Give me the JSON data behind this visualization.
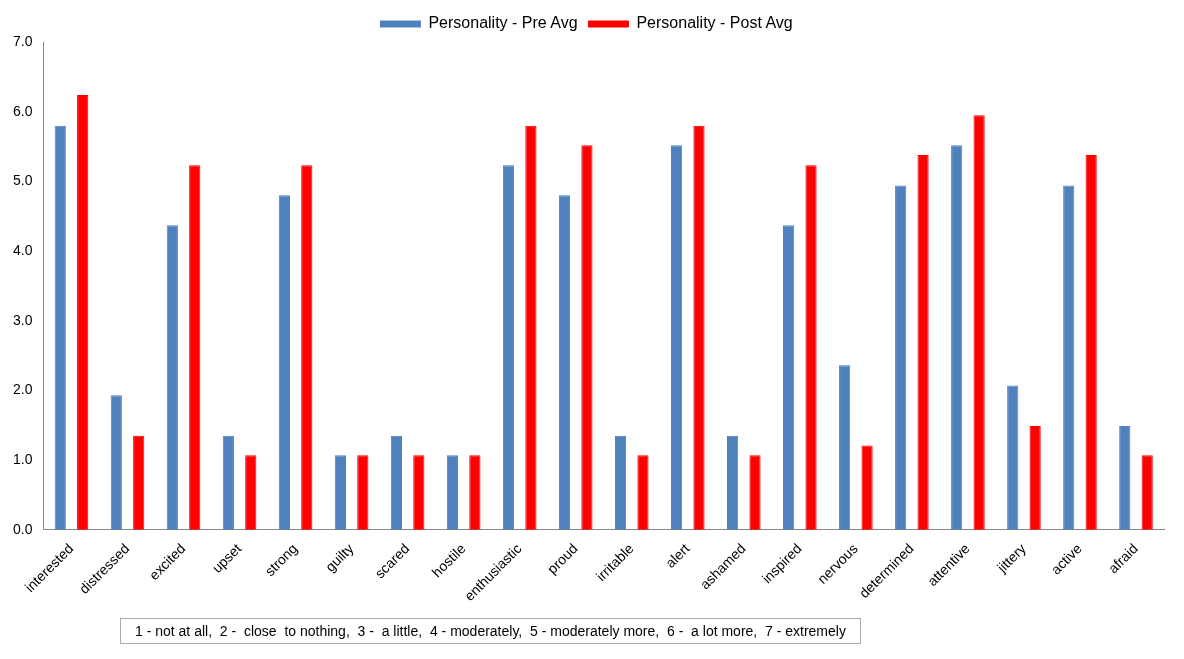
{
  "chart_data": {
    "type": "bar",
    "categories": [
      "interested",
      "distressed",
      "excited",
      "upset",
      "strong",
      "guilty",
      "scared",
      "hostile",
      "enthusiastic",
      "proud",
      "irritable",
      "alert",
      "ashamed",
      "inspired",
      "nervous",
      "determined",
      "attentive",
      "jittery",
      "active",
      "afraid"
    ],
    "series": [
      {
        "name": "Personality - Pre Avg",
        "color": "#4f81bd",
        "values": [
          5.8,
          1.93,
          4.37,
          1.35,
          4.8,
          1.07,
          1.35,
          1.07,
          5.23,
          4.8,
          1.35,
          5.52,
          1.35,
          4.37,
          2.36,
          4.94,
          5.52,
          2.07,
          4.94,
          1.49
        ]
      },
      {
        "name": "Personality - Post Avg",
        "color": "#ff0000",
        "values": [
          6.24,
          1.35,
          5.23,
          1.07,
          5.23,
          1.07,
          1.07,
          1.07,
          5.8,
          5.52,
          1.07,
          5.8,
          1.07,
          5.23,
          1.21,
          5.38,
          5.95,
          1.49,
          5.38,
          1.07
        ]
      }
    ],
    "ylim": [
      0,
      7
    ],
    "yticks": [
      {
        "value": 0,
        "label": "0.0"
      },
      {
        "value": 1,
        "label": "1.0"
      },
      {
        "value": 2,
        "label": "2.0"
      },
      {
        "value": 3,
        "label": "3.0"
      },
      {
        "value": 4,
        "label": "4.0"
      },
      {
        "value": 5,
        "label": "5.0"
      },
      {
        "value": 6,
        "label": "6.0"
      },
      {
        "value": 7,
        "label": "7.0"
      }
    ],
    "grid": false,
    "legend": "top",
    "annotations": [
      "1 - not at all,  2 -  close  to nothing,  3 -  a little,  4 - moderately,  5 - moderately more,  6 -  a lot more,  7 - extremely"
    ]
  }
}
